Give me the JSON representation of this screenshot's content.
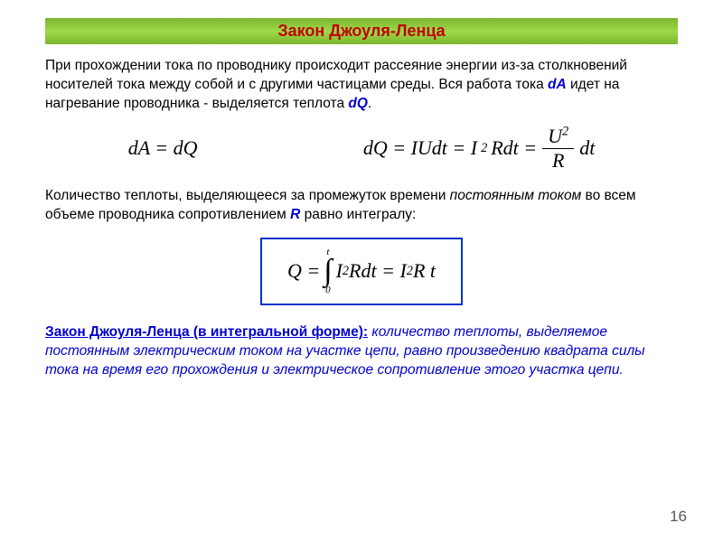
{
  "title": "Закон Джоуля-Ленца",
  "paragraph1": {
    "pre": "При прохождении тока по проводнику происходит рассеяние энергии из-за столкновений носителей тока между собой и с другими частицами среды. Вся работа тока ",
    "dA": "dA",
    "mid": " идет на нагревание проводника - выделяется теплота ",
    "dQ": "dQ",
    "end": "."
  },
  "eq1": "dA = dQ",
  "eq2": {
    "p1": "dQ = IUdt = I",
    "sup1": "2",
    "p2": "Rdt = ",
    "frac_num": "U",
    "frac_num_sup": "2",
    "frac_den": "R",
    "p3": "dt"
  },
  "paragraph2": {
    "pre": "Количество теплоты, выделяющееся за промежуток времени ",
    "ital1": "постоянным током",
    "mid": " во всем объеме проводника сопротивлением ",
    "R": "R",
    "end": " равно интегралу:"
  },
  "boxed": {
    "Q": "Q = ",
    "ub": "t",
    "int": "∫",
    "lb": "0",
    "p1": "I",
    "sup1": "2",
    "p2": "Rdt = I",
    "sup2": "2",
    "p3": "R t"
  },
  "law": {
    "title": "Закон Джоуля-Ленца (в интегральной форме):",
    "body": " количество теплоты, выделяемое постоянным электрическим током на участке цепи, равно произведению квадрата силы тока на время его прохождения и электрическое сопротивление этого участка цепи."
  },
  "page": "16"
}
